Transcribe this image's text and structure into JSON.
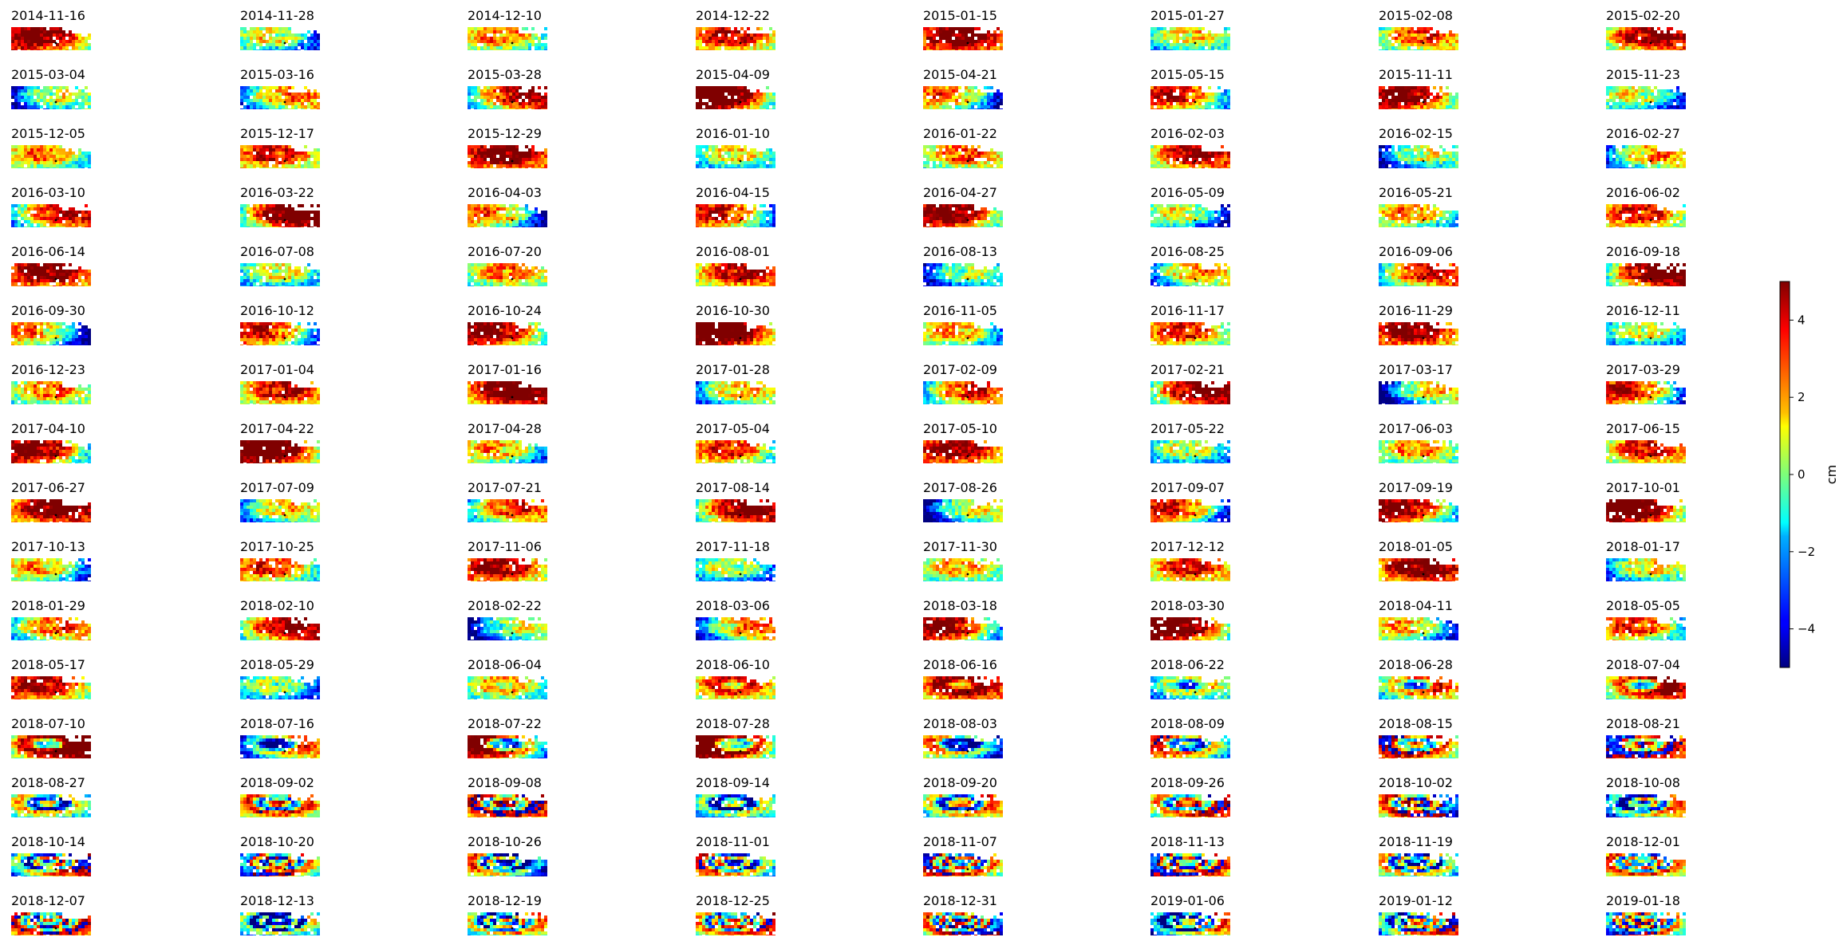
{
  "chart_data": {
    "type": "heatmap",
    "description_grid": "small multiples",
    "columns": 8,
    "rows": 16,
    "panels": [
      "2014-11-16",
      "2014-11-28",
      "2014-12-10",
      "2014-12-22",
      "2015-01-15",
      "2015-01-27",
      "2015-02-08",
      "2015-02-20",
      "2015-03-04",
      "2015-03-16",
      "2015-03-28",
      "2015-04-09",
      "2015-04-21",
      "2015-05-15",
      "2015-11-11",
      "2015-11-23",
      "2015-12-05",
      "2015-12-17",
      "2015-12-29",
      "2016-01-10",
      "2016-01-22",
      "2016-02-03",
      "2016-02-15",
      "2016-02-27",
      "2016-03-10",
      "2016-03-22",
      "2016-04-03",
      "2016-04-15",
      "2016-04-27",
      "2016-05-09",
      "2016-05-21",
      "2016-06-02",
      "2016-06-14",
      "2016-07-08",
      "2016-07-20",
      "2016-08-01",
      "2016-08-13",
      "2016-08-25",
      "2016-09-06",
      "2016-09-18",
      "2016-09-30",
      "2016-10-12",
      "2016-10-24",
      "2016-10-30",
      "2016-11-05",
      "2016-11-17",
      "2016-11-29",
      "2016-12-11",
      "2016-12-23",
      "2017-01-04",
      "2017-01-16",
      "2017-01-28",
      "2017-02-09",
      "2017-02-21",
      "2017-03-17",
      "2017-03-29",
      "2017-04-10",
      "2017-04-22",
      "2017-04-28",
      "2017-05-04",
      "2017-05-10",
      "2017-05-22",
      "2017-06-03",
      "2017-06-15",
      "2017-06-27",
      "2017-07-09",
      "2017-07-21",
      "2017-08-14",
      "2017-08-26",
      "2017-09-07",
      "2017-09-19",
      "2017-10-01",
      "2017-10-13",
      "2017-10-25",
      "2017-11-06",
      "2017-11-18",
      "2017-11-30",
      "2017-12-12",
      "2018-01-05",
      "2018-01-17",
      "2018-01-29",
      "2018-02-10",
      "2018-02-22",
      "2018-03-06",
      "2018-03-18",
      "2018-03-30",
      "2018-04-11",
      "2018-05-05",
      "2018-05-17",
      "2018-05-29",
      "2018-06-04",
      "2018-06-10",
      "2018-06-16",
      "2018-06-22",
      "2018-06-28",
      "2018-07-04",
      "2018-07-10",
      "2018-07-16",
      "2018-07-22",
      "2018-07-28",
      "2018-08-03",
      "2018-08-09",
      "2018-08-15",
      "2018-08-21",
      "2018-08-27",
      "2018-09-02",
      "2018-09-08",
      "2018-09-14",
      "2018-09-20",
      "2018-09-26",
      "2018-10-02",
      "2018-10-08",
      "2018-10-14",
      "2018-10-20",
      "2018-10-26",
      "2018-11-01",
      "2018-11-07",
      "2018-11-13",
      "2018-11-19",
      "2018-12-01",
      "2018-12-07",
      "2018-12-13",
      "2018-12-19",
      "2018-12-25",
      "2018-12-31",
      "2019-01-06",
      "2019-01-12",
      "2019-01-18"
    ],
    "colorbar": {
      "colormap": "jet",
      "range": [
        -5,
        5
      ],
      "ticks": [
        4,
        2,
        0,
        -2,
        -4
      ],
      "tick_labels": [
        "4",
        "2",
        "0",
        "−2",
        "−4"
      ],
      "label": "cm"
    }
  }
}
